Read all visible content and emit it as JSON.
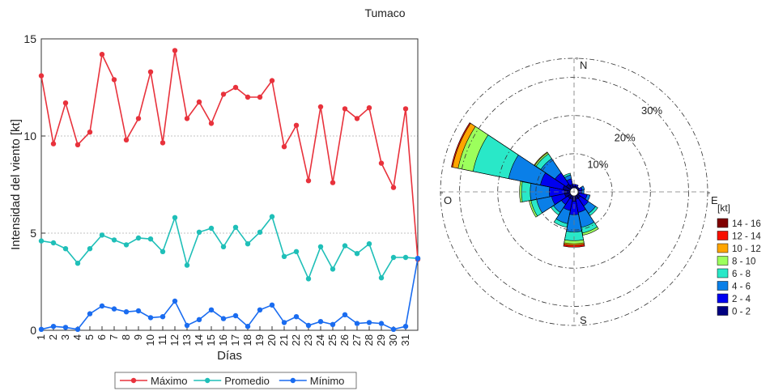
{
  "figure_title": "Tumaco",
  "chart_data": [
    {
      "type": "line",
      "xlabel": "Días",
      "ylabel": "Intensidad del viento [kt]",
      "ylim": [
        0,
        15
      ],
      "yticks": [
        0,
        5,
        10,
        15
      ],
      "grid": "horizontal dotted",
      "legend_placement": "bottom",
      "x": [
        1,
        2,
        3,
        4,
        5,
        6,
        7,
        8,
        9,
        10,
        11,
        12,
        13,
        14,
        15,
        16,
        17,
        18,
        19,
        20,
        21,
        22,
        23,
        24,
        25,
        26,
        27,
        28,
        29,
        30,
        31,
        32
      ],
      "xticklabels": [
        "1",
        "2",
        "3",
        "4",
        "5",
        "6",
        "7",
        "8",
        "9",
        "10",
        "11",
        "12",
        "13",
        "14",
        "15",
        "16",
        "17",
        "18",
        "19",
        "20",
        "21",
        "22",
        "23",
        "24",
        "25",
        "26",
        "27",
        "28",
        "29",
        "30",
        "31"
      ],
      "series": [
        {
          "name": "Máximo",
          "color": "#e8323c",
          "values": [
            13.1,
            9.6,
            11.7,
            9.55,
            10.2,
            14.2,
            12.9,
            9.8,
            10.9,
            13.3,
            9.65,
            14.4,
            10.9,
            11.75,
            10.65,
            12.15,
            12.5,
            12.0,
            12.0,
            12.85,
            9.45,
            10.55,
            7.7,
            11.5,
            7.6,
            11.4,
            10.9,
            11.45,
            8.6,
            7.35,
            11.4,
            3.65
          ]
        },
        {
          "name": "Promedio",
          "color": "#1fbfb8",
          "values": [
            4.6,
            4.5,
            4.2,
            3.45,
            4.2,
            4.9,
            4.65,
            4.4,
            4.75,
            4.7,
            4.05,
            5.8,
            3.35,
            5.05,
            5.25,
            4.3,
            5.3,
            4.45,
            5.05,
            5.85,
            3.8,
            4.05,
            2.65,
            4.3,
            3.15,
            4.35,
            3.95,
            4.45,
            2.7,
            3.75,
            3.75,
            3.7
          ]
        },
        {
          "name": "Mínimo",
          "color": "#1a6cf0",
          "values": [
            0.05,
            0.2,
            0.15,
            0.05,
            0.85,
            1.25,
            1.1,
            0.95,
            1.0,
            0.65,
            0.7,
            1.5,
            0.25,
            0.55,
            1.05,
            0.6,
            0.75,
            0.2,
            1.05,
            1.3,
            0.4,
            0.7,
            0.25,
            0.45,
            0.3,
            0.8,
            0.35,
            0.4,
            0.35,
            0.05,
            0.2,
            3.7
          ]
        }
      ]
    },
    {
      "type": "wind-rose",
      "directions": [
        "N",
        "E",
        "S",
        "O"
      ],
      "radial_ticks": [
        "10%",
        "20%",
        "30%"
      ],
      "radial_values": [
        10,
        20,
        30
      ],
      "rmax": 35,
      "legend_title": "[kt]",
      "bins": [
        "0 - 2",
        "2 - 4",
        "4 - 6",
        "6 - 8",
        "8 - 10",
        "10 - 12",
        "12 - 14",
        "14 - 16"
      ],
      "bin_colors": [
        "#000080",
        "#0000f0",
        "#0a7fe8",
        "#29e8c8",
        "#9cff5c",
        "#ffa500",
        "#f81000",
        "#800000"
      ],
      "sectors": [
        {
          "bearing": 0,
          "cum": [
            1.5,
            2.0
          ]
        },
        {
          "bearing": 22.5,
          "cum": [
            1.5,
            2.0
          ]
        },
        {
          "bearing": 45,
          "cum": [
            1.2,
            1.6
          ]
        },
        {
          "bearing": 67.5,
          "cum": [
            1.4,
            2.2,
            2.8
          ]
        },
        {
          "bearing": 90,
          "cum": [
            1.2,
            2.0,
            2.6
          ]
        },
        {
          "bearing": 112.5,
          "cum": [
            1.4,
            3.5,
            4.3
          ]
        },
        {
          "bearing": 135,
          "cum": [
            2.0,
            4.5,
            6.8,
            7.5
          ]
        },
        {
          "bearing": 157.5,
          "cum": [
            2.0,
            5.5,
            9.5,
            11.0,
            11.6
          ]
        },
        {
          "bearing": 180,
          "cum": [
            2.5,
            6.0,
            10.5,
            12.8,
            13.6,
            14.0,
            14.5
          ]
        },
        {
          "bearing": 202.5,
          "cum": [
            2.0,
            5.0,
            8.5,
            9.5
          ]
        },
        {
          "bearing": 225,
          "cum": [
            2.0,
            4.0,
            6.5,
            7.3
          ]
        },
        {
          "bearing": 247.5,
          "cum": [
            2.5,
            6.0,
            10.0,
            11.5,
            12.0
          ]
        },
        {
          "bearing": 270,
          "cum": [
            2.5,
            6.5,
            11.5,
            13.8,
            14.3
          ]
        },
        {
          "bearing": 292.5,
          "cum": [
            3.0,
            9.0,
            17.5,
            27.0,
            31.0,
            32.5,
            32.8
          ]
        },
        {
          "bearing": 315,
          "cum": [
            2.5,
            6.0,
            10.5,
            12.0,
            12.4,
            12.6
          ]
        },
        {
          "bearing": 337.5,
          "cum": [
            2.0,
            3.5,
            4.5,
            5.0
          ]
        }
      ]
    }
  ]
}
